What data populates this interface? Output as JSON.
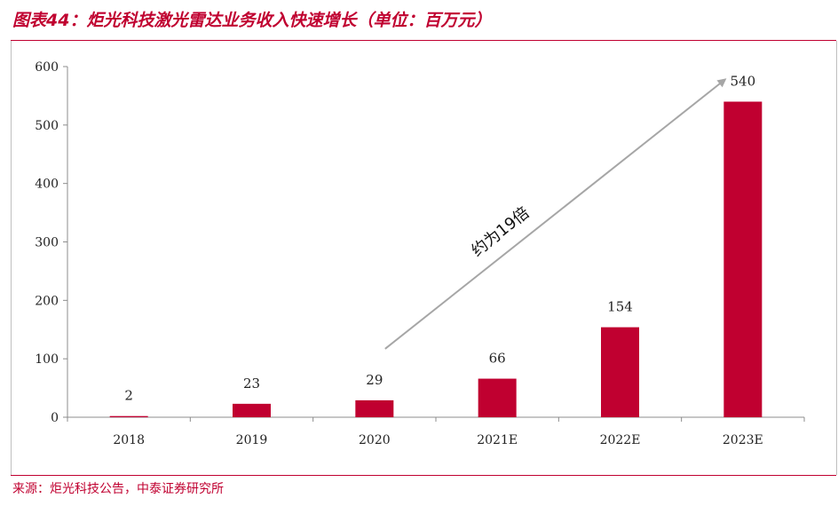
{
  "header": {
    "title": "图表44：炬光科技激光雷达业务收入快速增长（单位：百万元）"
  },
  "footer": {
    "source": "来源：炬光科技公告，中泰证券研究所"
  },
  "chart_data": {
    "type": "bar",
    "title": "图表44：炬光科技激光雷达业务收入快速增长（单位：百万元）",
    "xlabel": "",
    "ylabel": "",
    "categories": [
      "2018",
      "2019",
      "2020",
      "2021E",
      "2022E",
      "2023E"
    ],
    "values": [
      2,
      23,
      29,
      66,
      154,
      540
    ],
    "data_labels": [
      "2",
      "23",
      "29",
      "66",
      "154",
      "540"
    ],
    "ylim": [
      0,
      600
    ],
    "yticks": [
      0,
      100,
      200,
      300,
      400,
      500,
      600
    ],
    "ytick_labels": [
      "0",
      "100",
      "200",
      "300",
      "400",
      "500",
      "600"
    ],
    "grid": false,
    "legend": "none",
    "bar_color": "#c00030",
    "annotation": {
      "text": "约为19倍",
      "from_category": "2020",
      "to_category": "2023E",
      "arrow_color": "#a6a6a6"
    }
  }
}
